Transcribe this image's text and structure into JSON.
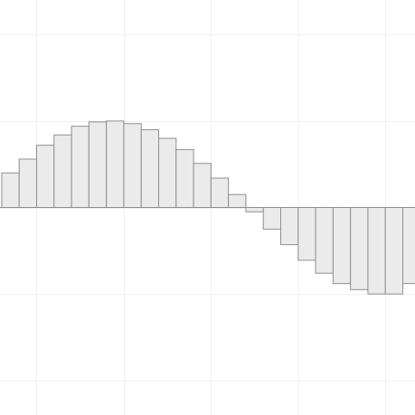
{
  "chart_data": {
    "type": "bar",
    "title": "",
    "xlabel": "",
    "ylabel": "",
    "x_range": [
      -4.6,
      19.2
    ],
    "ylim": [
      -2.4,
      2.4
    ],
    "grid": true,
    "grid_x": [
      -2.5,
      2.5,
      7.5,
      12.5,
      17.5
    ],
    "grid_y": [
      -2,
      -1,
      0,
      1,
      2
    ],
    "x": [
      -4,
      -3,
      -2,
      -1,
      0,
      1,
      2,
      3,
      4,
      5,
      6,
      7,
      8,
      9,
      10,
      11,
      12,
      13,
      14,
      15,
      16,
      17,
      18,
      19
    ],
    "values": [
      0.4,
      0.56,
      0.72,
      0.84,
      0.94,
      0.99,
      1.0,
      0.97,
      0.9,
      0.8,
      0.67,
      0.51,
      0.34,
      0.15,
      -0.05,
      -0.25,
      -0.43,
      -0.61,
      -0.76,
      -0.88,
      -0.95,
      -1.0,
      -1.0,
      -0.88
    ],
    "colors": {
      "bar_fill": "#ebebeb",
      "bar_edge": "#8f8f8f",
      "grid": "#f0f0f0"
    }
  }
}
